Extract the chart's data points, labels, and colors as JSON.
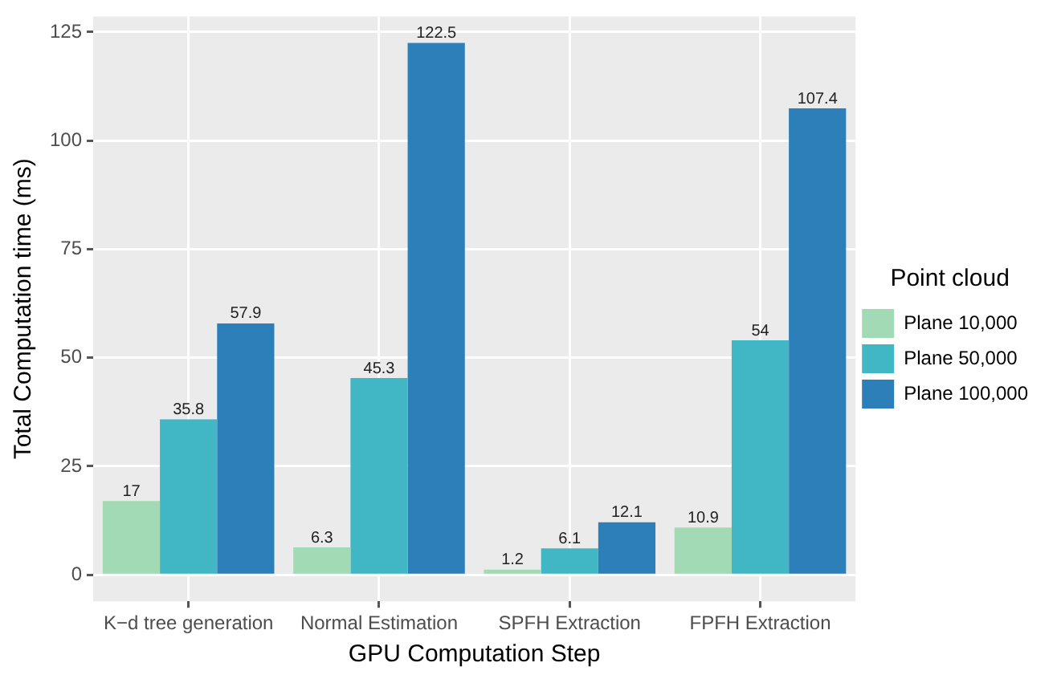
{
  "chart_data": {
    "type": "bar",
    "xlabel": "GPU Computation Step",
    "ylabel": "Total Computation time (ms)",
    "legend_title": "Point cloud",
    "categories": [
      "K−d tree generation",
      "Normal Estimation",
      "SPFH Extraction",
      "FPFH Extraction"
    ],
    "series": [
      {
        "name": "Plane 10,000",
        "color": "#a1dab4",
        "values": [
          17,
          6.3,
          1.2,
          10.9
        ]
      },
      {
        "name": "Plane 50,000",
        "color": "#41b6c4",
        "values": [
          35.8,
          45.3,
          6.1,
          54
        ]
      },
      {
        "name": "Plane 100,000",
        "color": "#2c7fb8",
        "values": [
          57.9,
          122.5,
          12.1,
          107.4
        ]
      }
    ],
    "ylim": [
      -6.1,
      128.6
    ],
    "yticks": [
      0,
      25,
      50,
      75,
      100,
      125
    ],
    "grid": true,
    "legend": "right",
    "data_labels": true
  }
}
